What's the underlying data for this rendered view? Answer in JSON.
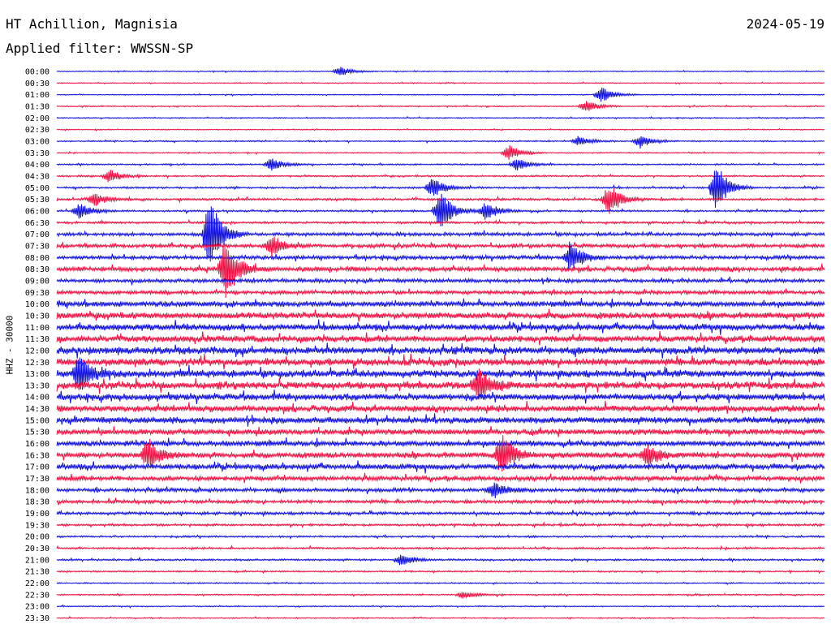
{
  "header": {
    "station": "HT Achillion, Magnisia",
    "date": "2024-05-19",
    "filter": "Applied filter: WWSSN-SP"
  },
  "channel_label": "HHZ - 30000",
  "colors": {
    "blue": "#1010dd",
    "red": "#ee1144"
  },
  "chart_data": {
    "type": "line",
    "title": "HT Achillion, Magnisia",
    "subtitle": "Applied filter: WWSSN-SP",
    "date": "2024-05-19",
    "ylabel": "HHZ - 30000",
    "y_tick_labels": [
      "00:00",
      "00:30",
      "01:00",
      "01:30",
      "02:00",
      "02:30",
      "03:00",
      "03:30",
      "04:00",
      "04:30",
      "05:00",
      "05:30",
      "06:00",
      "06:30",
      "07:00",
      "07:30",
      "08:00",
      "08:30",
      "09:00",
      "09:30",
      "10:00",
      "10:30",
      "11:00",
      "11:30",
      "12:00",
      "12:30",
      "13:00",
      "13:30",
      "14:00",
      "14:30",
      "15:00",
      "15:30",
      "16:00",
      "16:30",
      "17:00",
      "17:30",
      "18:00",
      "18:30",
      "19:00",
      "19:30",
      "20:00",
      "20:30",
      "21:00",
      "21:30",
      "22:00",
      "22:30",
      "23:00",
      "23:30"
    ],
    "trace_colors": [
      "blue",
      "red"
    ],
    "grid": false,
    "noise_level": [
      0.5,
      0.5,
      0.5,
      0.6,
      0.6,
      0.5,
      0.7,
      0.6,
      0.8,
      0.9,
      1.0,
      1.2,
      1.0,
      1.2,
      1.8,
      2.0,
      2.0,
      2.5,
      2.0,
      2.0,
      3.0,
      3.5,
      3.5,
      3.5,
      4.0,
      4.0,
      4.0,
      4.0,
      3.5,
      3.5,
      3.5,
      3.0,
      3.0,
      3.0,
      3.0,
      2.5,
      2.0,
      1.8,
      1.6,
      1.2,
      1.0,
      1.0,
      1.0,
      0.8,
      0.7,
      0.7,
      0.6,
      0.6
    ],
    "events": [
      {
        "trace": 0,
        "x": 0.37,
        "amp": 6
      },
      {
        "trace": 2,
        "x": 0.71,
        "amp": 10
      },
      {
        "trace": 3,
        "x": 0.69,
        "amp": 8
      },
      {
        "trace": 6,
        "x": 0.68,
        "amp": 6
      },
      {
        "trace": 6,
        "x": 0.76,
        "amp": 8
      },
      {
        "trace": 7,
        "x": 0.59,
        "amp": 10
      },
      {
        "trace": 8,
        "x": 0.28,
        "amp": 8
      },
      {
        "trace": 8,
        "x": 0.6,
        "amp": 8
      },
      {
        "trace": 9,
        "x": 0.07,
        "amp": 8
      },
      {
        "trace": 10,
        "x": 0.49,
        "amp": 12
      },
      {
        "trace": 10,
        "x": 0.86,
        "amp": 30
      },
      {
        "trace": 11,
        "x": 0.05,
        "amp": 8
      },
      {
        "trace": 11,
        "x": 0.72,
        "amp": 20
      },
      {
        "trace": 12,
        "x": 0.03,
        "amp": 10
      },
      {
        "trace": 12,
        "x": 0.5,
        "amp": 25
      },
      {
        "trace": 12,
        "x": 0.56,
        "amp": 12
      },
      {
        "trace": 14,
        "x": 0.2,
        "amp": 45
      },
      {
        "trace": 15,
        "x": 0.28,
        "amp": 14
      },
      {
        "trace": 16,
        "x": 0.67,
        "amp": 18
      },
      {
        "trace": 17,
        "x": 0.22,
        "amp": 40
      },
      {
        "trace": 26,
        "x": 0.03,
        "amp": 20
      },
      {
        "trace": 27,
        "x": 0.55,
        "amp": 20
      },
      {
        "trace": 33,
        "x": 0.12,
        "amp": 20
      },
      {
        "trace": 33,
        "x": 0.58,
        "amp": 25
      },
      {
        "trace": 33,
        "x": 0.77,
        "amp": 12
      },
      {
        "trace": 36,
        "x": 0.57,
        "amp": 10
      },
      {
        "trace": 42,
        "x": 0.45,
        "amp": 8
      },
      {
        "trace": 45,
        "x": 0.53,
        "amp": 5
      }
    ]
  }
}
